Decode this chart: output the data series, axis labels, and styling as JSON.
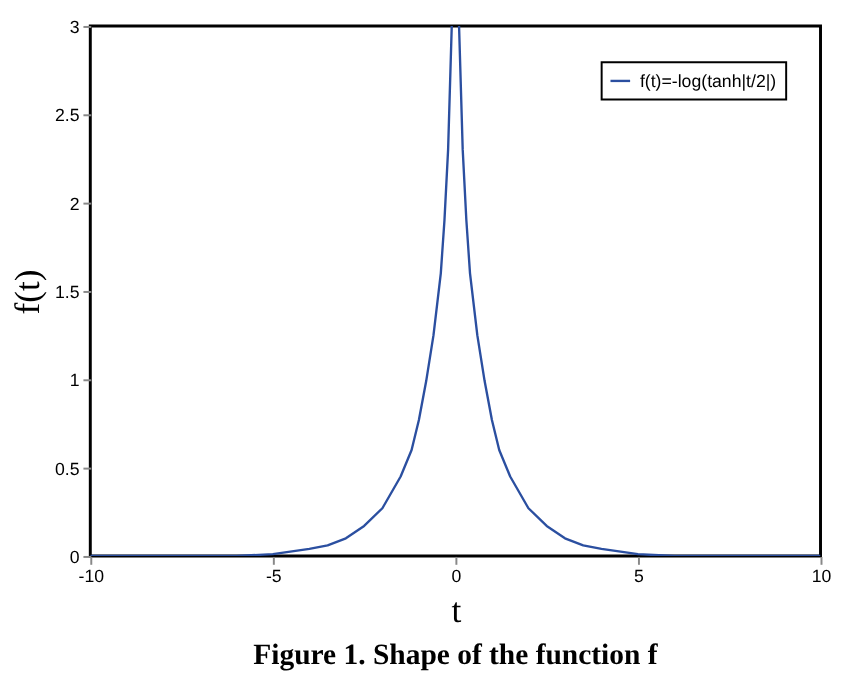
{
  "chart_data": {
    "type": "line",
    "title": "Figure 1. Shape of the function f",
    "xlabel": "t",
    "ylabel": "f(t)",
    "x": [
      -10,
      -8,
      -6,
      -5,
      -4,
      -3.5,
      -3,
      -2.5,
      -2,
      -1.5,
      -1.2,
      -1,
      -0.8,
      -0.6,
      -0.4,
      -0.3,
      -0.2,
      -0.1,
      0,
      0.1,
      0.2,
      0.3,
      0.4,
      0.6,
      0.8,
      1,
      1.2,
      1.5,
      2,
      2.5,
      3,
      3.5,
      4,
      5,
      6,
      8,
      10
    ],
    "series": [
      {
        "name": "f(t)=-log(tanh|t/2|)",
        "color": "#2b4fa0",
        "values": [
          0,
          0,
          0,
          0.01,
          0.04,
          0.06,
          0.1,
          0.17,
          0.27,
          0.45,
          0.6,
          0.77,
          0.99,
          1.25,
          1.6,
          1.9,
          2.3,
          3.0,
          null,
          3.0,
          2.3,
          1.9,
          1.6,
          1.25,
          0.99,
          0.77,
          0.6,
          0.45,
          0.27,
          0.17,
          0.1,
          0.06,
          0.04,
          0.01,
          0,
          0,
          0
        ]
      }
    ],
    "xlim": [
      -10,
      10
    ],
    "xticks": [
      -10,
      -5,
      0,
      5,
      10
    ],
    "ylim": [
      0,
      3
    ],
    "yticks": [
      0,
      0.5,
      1,
      1.5,
      2,
      2.5,
      3
    ],
    "grid": false,
    "legend": "top right",
    "marker": "none",
    "line_style": "solid"
  }
}
